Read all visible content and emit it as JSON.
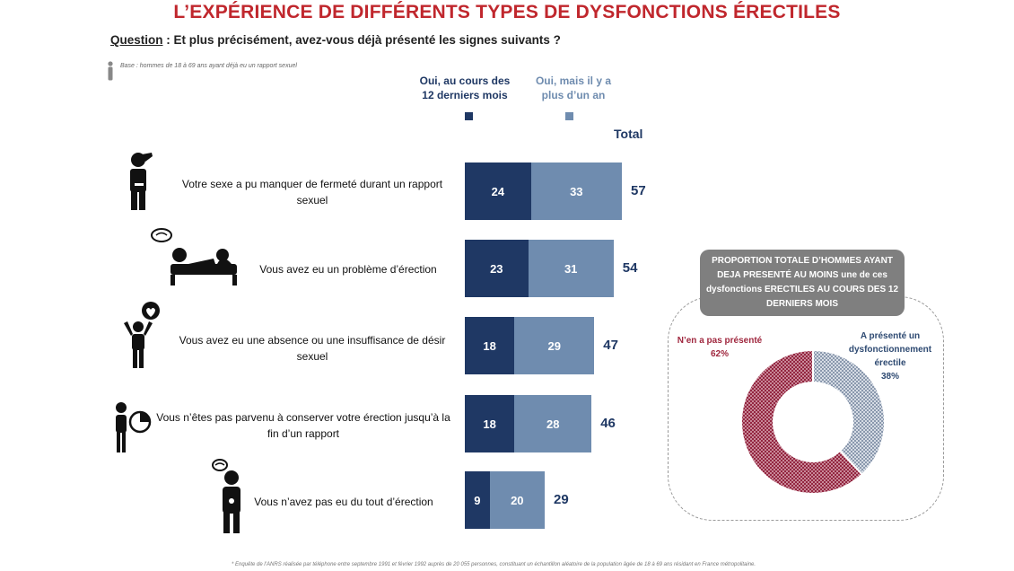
{
  "title": "L’EXPÉRIENCE DE DIFFÉRENTS TYPES DE DYSFONCTIONS ÉRECTILES",
  "question_label": "Question",
  "question_text": " : Et plus précisément, avez-vous déjà présenté les signes suivants ?",
  "base_text": "Base : hommes de 18 à 69 ans ayant déjà eu un rapport sexuel",
  "legend": {
    "dark": "Oui, au cours des 12 derniers mois",
    "light": "Oui, mais il y a plus d’un an",
    "total": "Total"
  },
  "colors": {
    "dark": "#1f3864",
    "light": "#6f8caf",
    "red": "#a0283f",
    "blue_grey": "#9aa6b8",
    "title": "#c0272d"
  },
  "chart_data": [
    {
      "type": "bar",
      "orientation": "horizontal",
      "stacked": true,
      "categories": [
        "Votre sexe a pu manquer de fermeté durant un rapport sexuel",
        "Vous avez eu un problème d’érection",
        "Vous avez eu une absence ou une insuffisance de désir sexuel",
        "Vous n’êtes pas parvenu à conserver votre érection jusqu’à la fin d’un rapport",
        "Vous n’avez pas eu du tout d’érection"
      ],
      "series": [
        {
          "name": "Oui, au cours des 12 derniers mois",
          "values": [
            24,
            23,
            18,
            18,
            9
          ]
        },
        {
          "name": "Oui, mais il y a plus d’un an",
          "values": [
            33,
            31,
            29,
            28,
            20
          ]
        }
      ],
      "totals": [
        57,
        54,
        47,
        46,
        29
      ],
      "icons": [
        "confused-man-icon",
        "man-lying-on-bed-icon",
        "man-with-heart-thought-icon",
        "man-with-clock-icon",
        "man-with-worry-cloud-icon"
      ]
    },
    {
      "type": "pie",
      "donut": true,
      "title": "PROPORTION TOTALE D’HOMMES AYANT DEJA PRESENTÉ AU MOINS une de ces dysfonctions ERECTILES AU COURS DES 12 DERNIERS MOIS",
      "labels": [
        "N’en a pas présenté",
        "A présenté un dysfonctionnement érectile"
      ],
      "values": [
        62,
        38
      ],
      "value_labels": [
        "62%",
        "38%"
      ]
    }
  ],
  "footnote": "* Enquête de l’ANRS réalisée par téléphone entre septembre 1991 et février 1992 auprès de 20 055 personnes, constituant un échantillon aléatoire de la population âgée de 18 à 69 ans résidant en France métropolitaine."
}
